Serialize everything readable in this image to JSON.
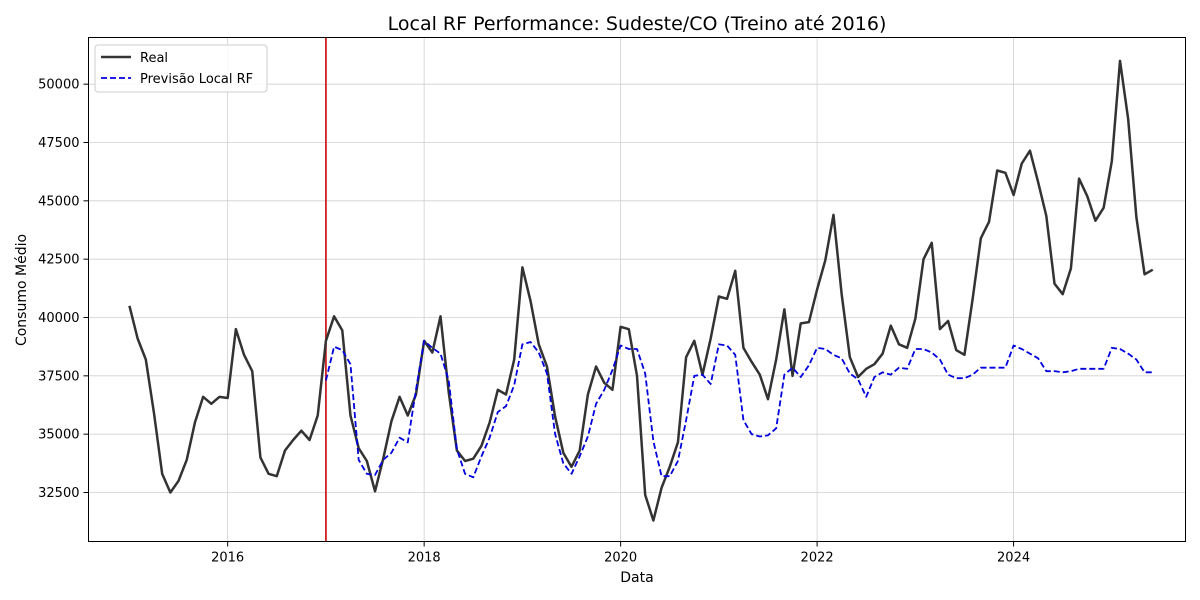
{
  "chart_data": {
    "type": "line",
    "title": "Local RF Performance: Sudeste/CO (Treino até 2016)",
    "xlabel": "Data",
    "ylabel": "Consumo Médio",
    "x_ticks": [
      "2016",
      "2018",
      "2020",
      "2022",
      "2024"
    ],
    "y_ticks": [
      32500,
      35000,
      37500,
      40000,
      42500,
      45000,
      47500,
      50000
    ],
    "xlim": [
      "2014-08",
      "2025-10"
    ],
    "ylim": [
      30400,
      52000
    ],
    "grid": true,
    "legend_position": "top-left",
    "split_date": "2017-01",
    "split_color": "#cc2222",
    "series": [
      {
        "name": "Real",
        "color": "#333333",
        "style": "solid",
        "points": [
          [
            "2015-01",
            40500
          ],
          [
            "2015-02",
            39100
          ],
          [
            "2015-03",
            38200
          ],
          [
            "2015-04",
            35900
          ],
          [
            "2015-05",
            33300
          ],
          [
            "2015-06",
            32500
          ],
          [
            "2015-07",
            33000
          ],
          [
            "2015-08",
            33900
          ],
          [
            "2015-09",
            35500
          ],
          [
            "2015-10",
            36600
          ],
          [
            "2015-11",
            36300
          ],
          [
            "2015-12",
            36600
          ],
          [
            "2016-01",
            36550
          ],
          [
            "2016-02",
            39500
          ],
          [
            "2016-03",
            38400
          ],
          [
            "2016-04",
            37700
          ],
          [
            "2016-05",
            34000
          ],
          [
            "2016-06",
            33300
          ],
          [
            "2016-07",
            33200
          ],
          [
            "2016-08",
            34300
          ],
          [
            "2016-09",
            34750
          ],
          [
            "2016-10",
            35150
          ],
          [
            "2016-11",
            34750
          ],
          [
            "2016-12",
            35800
          ],
          [
            "2017-01",
            39000
          ],
          [
            "2017-02",
            40050
          ],
          [
            "2017-03",
            39450
          ],
          [
            "2017-04",
            35800
          ],
          [
            "2017-05",
            34400
          ],
          [
            "2017-06",
            33850
          ],
          [
            "2017-07",
            32550
          ],
          [
            "2017-08",
            33950
          ],
          [
            "2017-09",
            35550
          ],
          [
            "2017-10",
            36600
          ],
          [
            "2017-11",
            35800
          ],
          [
            "2017-12",
            36700
          ],
          [
            "2018-01",
            39000
          ],
          [
            "2018-02",
            38500
          ],
          [
            "2018-03",
            40050
          ],
          [
            "2018-04",
            36800
          ],
          [
            "2018-05",
            34300
          ],
          [
            "2018-06",
            33850
          ],
          [
            "2018-07",
            33950
          ],
          [
            "2018-08",
            34500
          ],
          [
            "2018-09",
            35500
          ],
          [
            "2018-10",
            36900
          ],
          [
            "2018-11",
            36700
          ],
          [
            "2018-12",
            38200
          ],
          [
            "2019-01",
            42150
          ],
          [
            "2019-02",
            40700
          ],
          [
            "2019-03",
            38850
          ],
          [
            "2019-04",
            37900
          ],
          [
            "2019-05",
            35750
          ],
          [
            "2019-06",
            34200
          ],
          [
            "2019-07",
            33600
          ],
          [
            "2019-08",
            34300
          ],
          [
            "2019-09",
            36700
          ],
          [
            "2019-10",
            37900
          ],
          [
            "2019-11",
            37200
          ],
          [
            "2019-12",
            36900
          ],
          [
            "2020-01",
            39600
          ],
          [
            "2020-02",
            39500
          ],
          [
            "2020-03",
            37500
          ],
          [
            "2020-04",
            32400
          ],
          [
            "2020-05",
            31300
          ],
          [
            "2020-06",
            32700
          ],
          [
            "2020-07",
            33600
          ],
          [
            "2020-08",
            34650
          ],
          [
            "2020-09",
            38300
          ],
          [
            "2020-10",
            39000
          ],
          [
            "2020-11",
            37550
          ],
          [
            "2020-12",
            39100
          ],
          [
            "2021-01",
            40900
          ],
          [
            "2021-02",
            40800
          ],
          [
            "2021-03",
            42000
          ],
          [
            "2021-04",
            38700
          ],
          [
            "2021-05",
            38100
          ],
          [
            "2021-06",
            37550
          ],
          [
            "2021-07",
            36500
          ],
          [
            "2021-08",
            38200
          ],
          [
            "2021-09",
            40350
          ],
          [
            "2021-10",
            37500
          ],
          [
            "2021-11",
            39750
          ],
          [
            "2021-12",
            39800
          ],
          [
            "2022-01",
            41200
          ],
          [
            "2022-02",
            42450
          ],
          [
            "2022-03",
            44400
          ],
          [
            "2022-04",
            41000
          ],
          [
            "2022-05",
            38300
          ],
          [
            "2022-06",
            37450
          ],
          [
            "2022-07",
            37800
          ],
          [
            "2022-08",
            38000
          ],
          [
            "2022-09",
            38450
          ],
          [
            "2022-10",
            39650
          ],
          [
            "2022-11",
            38850
          ],
          [
            "2022-12",
            38700
          ],
          [
            "2023-01",
            39950
          ],
          [
            "2023-02",
            42500
          ],
          [
            "2023-03",
            43200
          ],
          [
            "2023-04",
            39500
          ],
          [
            "2023-05",
            39850
          ],
          [
            "2023-06",
            38600
          ],
          [
            "2023-07",
            38400
          ],
          [
            "2023-08",
            40800
          ],
          [
            "2023-09",
            43400
          ],
          [
            "2023-10",
            44100
          ],
          [
            "2023-11",
            46300
          ],
          [
            "2023-12",
            46200
          ],
          [
            "2024-01",
            45250
          ],
          [
            "2024-02",
            46600
          ],
          [
            "2024-03",
            47150
          ],
          [
            "2024-04",
            45800
          ],
          [
            "2024-05",
            44350
          ],
          [
            "2024-06",
            41450
          ],
          [
            "2024-07",
            41000
          ],
          [
            "2024-08",
            42100
          ],
          [
            "2024-09",
            45950
          ],
          [
            "2024-10",
            45200
          ],
          [
            "2024-11",
            44150
          ],
          [
            "2024-12",
            44700
          ],
          [
            "2025-01",
            46700
          ],
          [
            "2025-02",
            51000
          ],
          [
            "2025-03",
            48500
          ],
          [
            "2025-04",
            44300
          ],
          [
            "2025-05",
            41850
          ],
          [
            "2025-06",
            42050
          ]
        ]
      },
      {
        "name": "Previsão Local RF",
        "color": "#0000dd",
        "style": "dashed",
        "points": [
          [
            "2017-01",
            37300
          ],
          [
            "2017-02",
            38750
          ],
          [
            "2017-03",
            38600
          ],
          [
            "2017-04",
            38000
          ],
          [
            "2017-05",
            33900
          ],
          [
            "2017-06",
            33300
          ],
          [
            "2017-07",
            33250
          ],
          [
            "2017-08",
            33900
          ],
          [
            "2017-09",
            34200
          ],
          [
            "2017-10",
            34850
          ],
          [
            "2017-11",
            34650
          ],
          [
            "2017-12",
            36900
          ],
          [
            "2018-01",
            39000
          ],
          [
            "2018-02",
            38700
          ],
          [
            "2018-03",
            38450
          ],
          [
            "2018-04",
            37300
          ],
          [
            "2018-05",
            34350
          ],
          [
            "2018-06",
            33300
          ],
          [
            "2018-07",
            33150
          ],
          [
            "2018-08",
            34050
          ],
          [
            "2018-09",
            34850
          ],
          [
            "2018-10",
            35950
          ],
          [
            "2018-11",
            36200
          ],
          [
            "2018-12",
            37100
          ],
          [
            "2019-01",
            38850
          ],
          [
            "2019-02",
            38950
          ],
          [
            "2019-03",
            38500
          ],
          [
            "2019-04",
            37600
          ],
          [
            "2019-05",
            35000
          ],
          [
            "2019-06",
            33750
          ],
          [
            "2019-07",
            33300
          ],
          [
            "2019-08",
            34050
          ],
          [
            "2019-09",
            34900
          ],
          [
            "2019-10",
            36300
          ],
          [
            "2019-11",
            36900
          ],
          [
            "2019-12",
            37750
          ],
          [
            "2020-01",
            38800
          ],
          [
            "2020-02",
            38650
          ],
          [
            "2020-03",
            38650
          ],
          [
            "2020-04",
            37600
          ],
          [
            "2020-05",
            34700
          ],
          [
            "2020-06",
            33200
          ],
          [
            "2020-07",
            33200
          ],
          [
            "2020-08",
            33850
          ],
          [
            "2020-09",
            35600
          ],
          [
            "2020-10",
            37500
          ],
          [
            "2020-11",
            37550
          ],
          [
            "2020-12",
            37150
          ],
          [
            "2021-01",
            38850
          ],
          [
            "2021-02",
            38800
          ],
          [
            "2021-03",
            38400
          ],
          [
            "2021-04",
            35600
          ],
          [
            "2021-05",
            35000
          ],
          [
            "2021-06",
            34900
          ],
          [
            "2021-07",
            34950
          ],
          [
            "2021-08",
            35250
          ],
          [
            "2021-09",
            37550
          ],
          [
            "2021-10",
            37850
          ],
          [
            "2021-11",
            37450
          ],
          [
            "2021-12",
            37950
          ],
          [
            "2022-01",
            38700
          ],
          [
            "2022-02",
            38650
          ],
          [
            "2022-03",
            38400
          ],
          [
            "2022-04",
            38250
          ],
          [
            "2022-05",
            37600
          ],
          [
            "2022-06",
            37350
          ],
          [
            "2022-07",
            36600
          ],
          [
            "2022-08",
            37450
          ],
          [
            "2022-09",
            37650
          ],
          [
            "2022-10",
            37550
          ],
          [
            "2022-11",
            37850
          ],
          [
            "2022-12",
            37800
          ],
          [
            "2023-01",
            38650
          ],
          [
            "2023-02",
            38650
          ],
          [
            "2023-03",
            38500
          ],
          [
            "2023-04",
            38200
          ],
          [
            "2023-05",
            37550
          ],
          [
            "2023-06",
            37400
          ],
          [
            "2023-07",
            37400
          ],
          [
            "2023-08",
            37550
          ],
          [
            "2023-09",
            37850
          ],
          [
            "2023-10",
            37850
          ],
          [
            "2023-11",
            37850
          ],
          [
            "2023-12",
            37850
          ],
          [
            "2024-01",
            38800
          ],
          [
            "2024-02",
            38650
          ],
          [
            "2024-03",
            38450
          ],
          [
            "2024-04",
            38250
          ],
          [
            "2024-05",
            37700
          ],
          [
            "2024-06",
            37700
          ],
          [
            "2024-07",
            37650
          ],
          [
            "2024-08",
            37700
          ],
          [
            "2024-09",
            37800
          ],
          [
            "2024-10",
            37800
          ],
          [
            "2024-11",
            37800
          ],
          [
            "2024-12",
            37800
          ],
          [
            "2025-01",
            38700
          ],
          [
            "2025-02",
            38650
          ],
          [
            "2025-03",
            38450
          ],
          [
            "2025-04",
            38200
          ],
          [
            "2025-05",
            37650
          ],
          [
            "2025-06",
            37650
          ]
        ]
      }
    ]
  }
}
